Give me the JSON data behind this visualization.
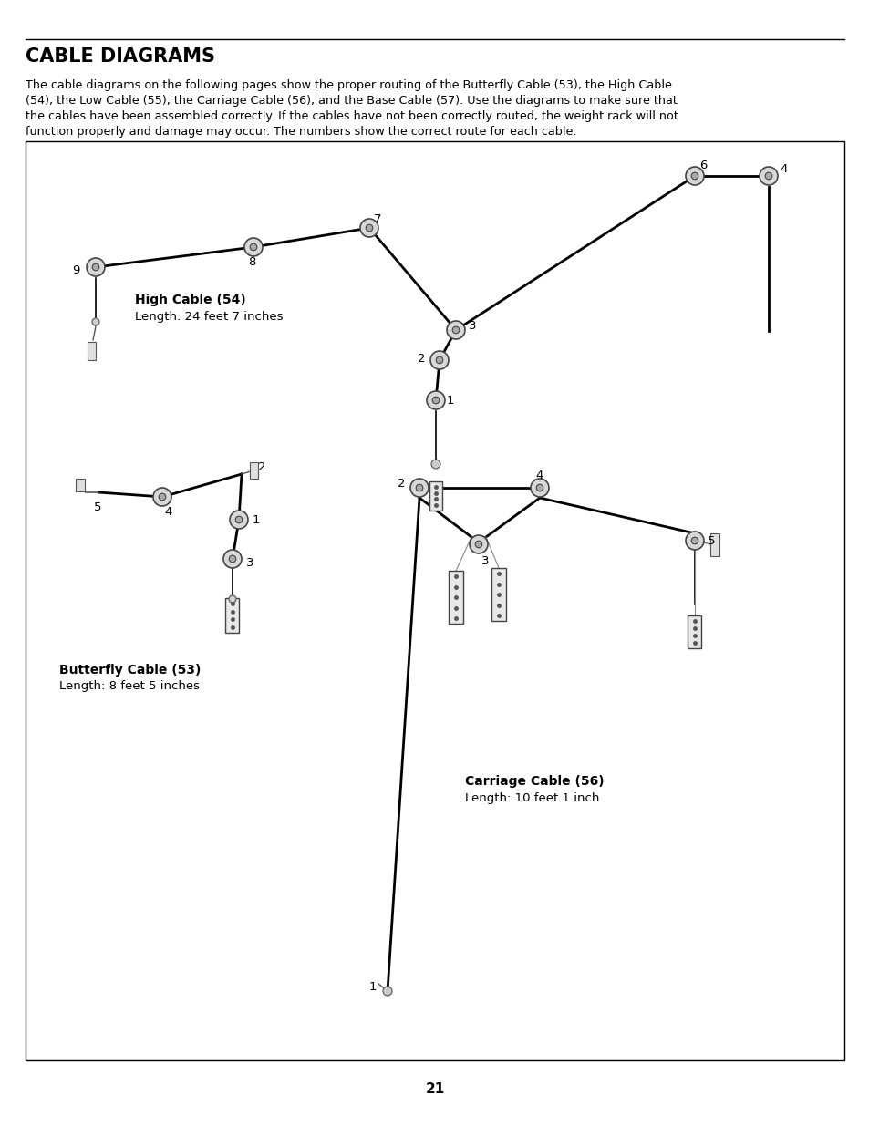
{
  "page_title": "CABLE DIAGRAMS",
  "page_number": "21",
  "desc_line1": "The cable diagrams on the following pages show the proper routing of the Butterfly Cable (53), the High Cable",
  "desc_line2": "(54), the Low Cable (55), the Carriage Cable (56), and the Base Cable (57). Use the diagrams to make sure that",
  "desc_line3": "the cables have been assembled correctly. If the cables have not been correctly routed, the weight rack will not",
  "desc_line4": "function properly and damage may occur. The numbers show the correct route for each cable.",
  "bg_color": "#ffffff",
  "border_color": "#000000",
  "line_color": "#000000",
  "high_cable_label": "High Cable (54)",
  "high_cable_length": "Length: 24 feet 7 inches",
  "butterfly_cable_label": "Butterfly Cable (53)",
  "butterfly_cable_length": "Length: 8 feet 5 inches",
  "carriage_cable_label": "Carriage Cable (56)",
  "carriage_cable_length": "Length: 10 feet 1 inch"
}
